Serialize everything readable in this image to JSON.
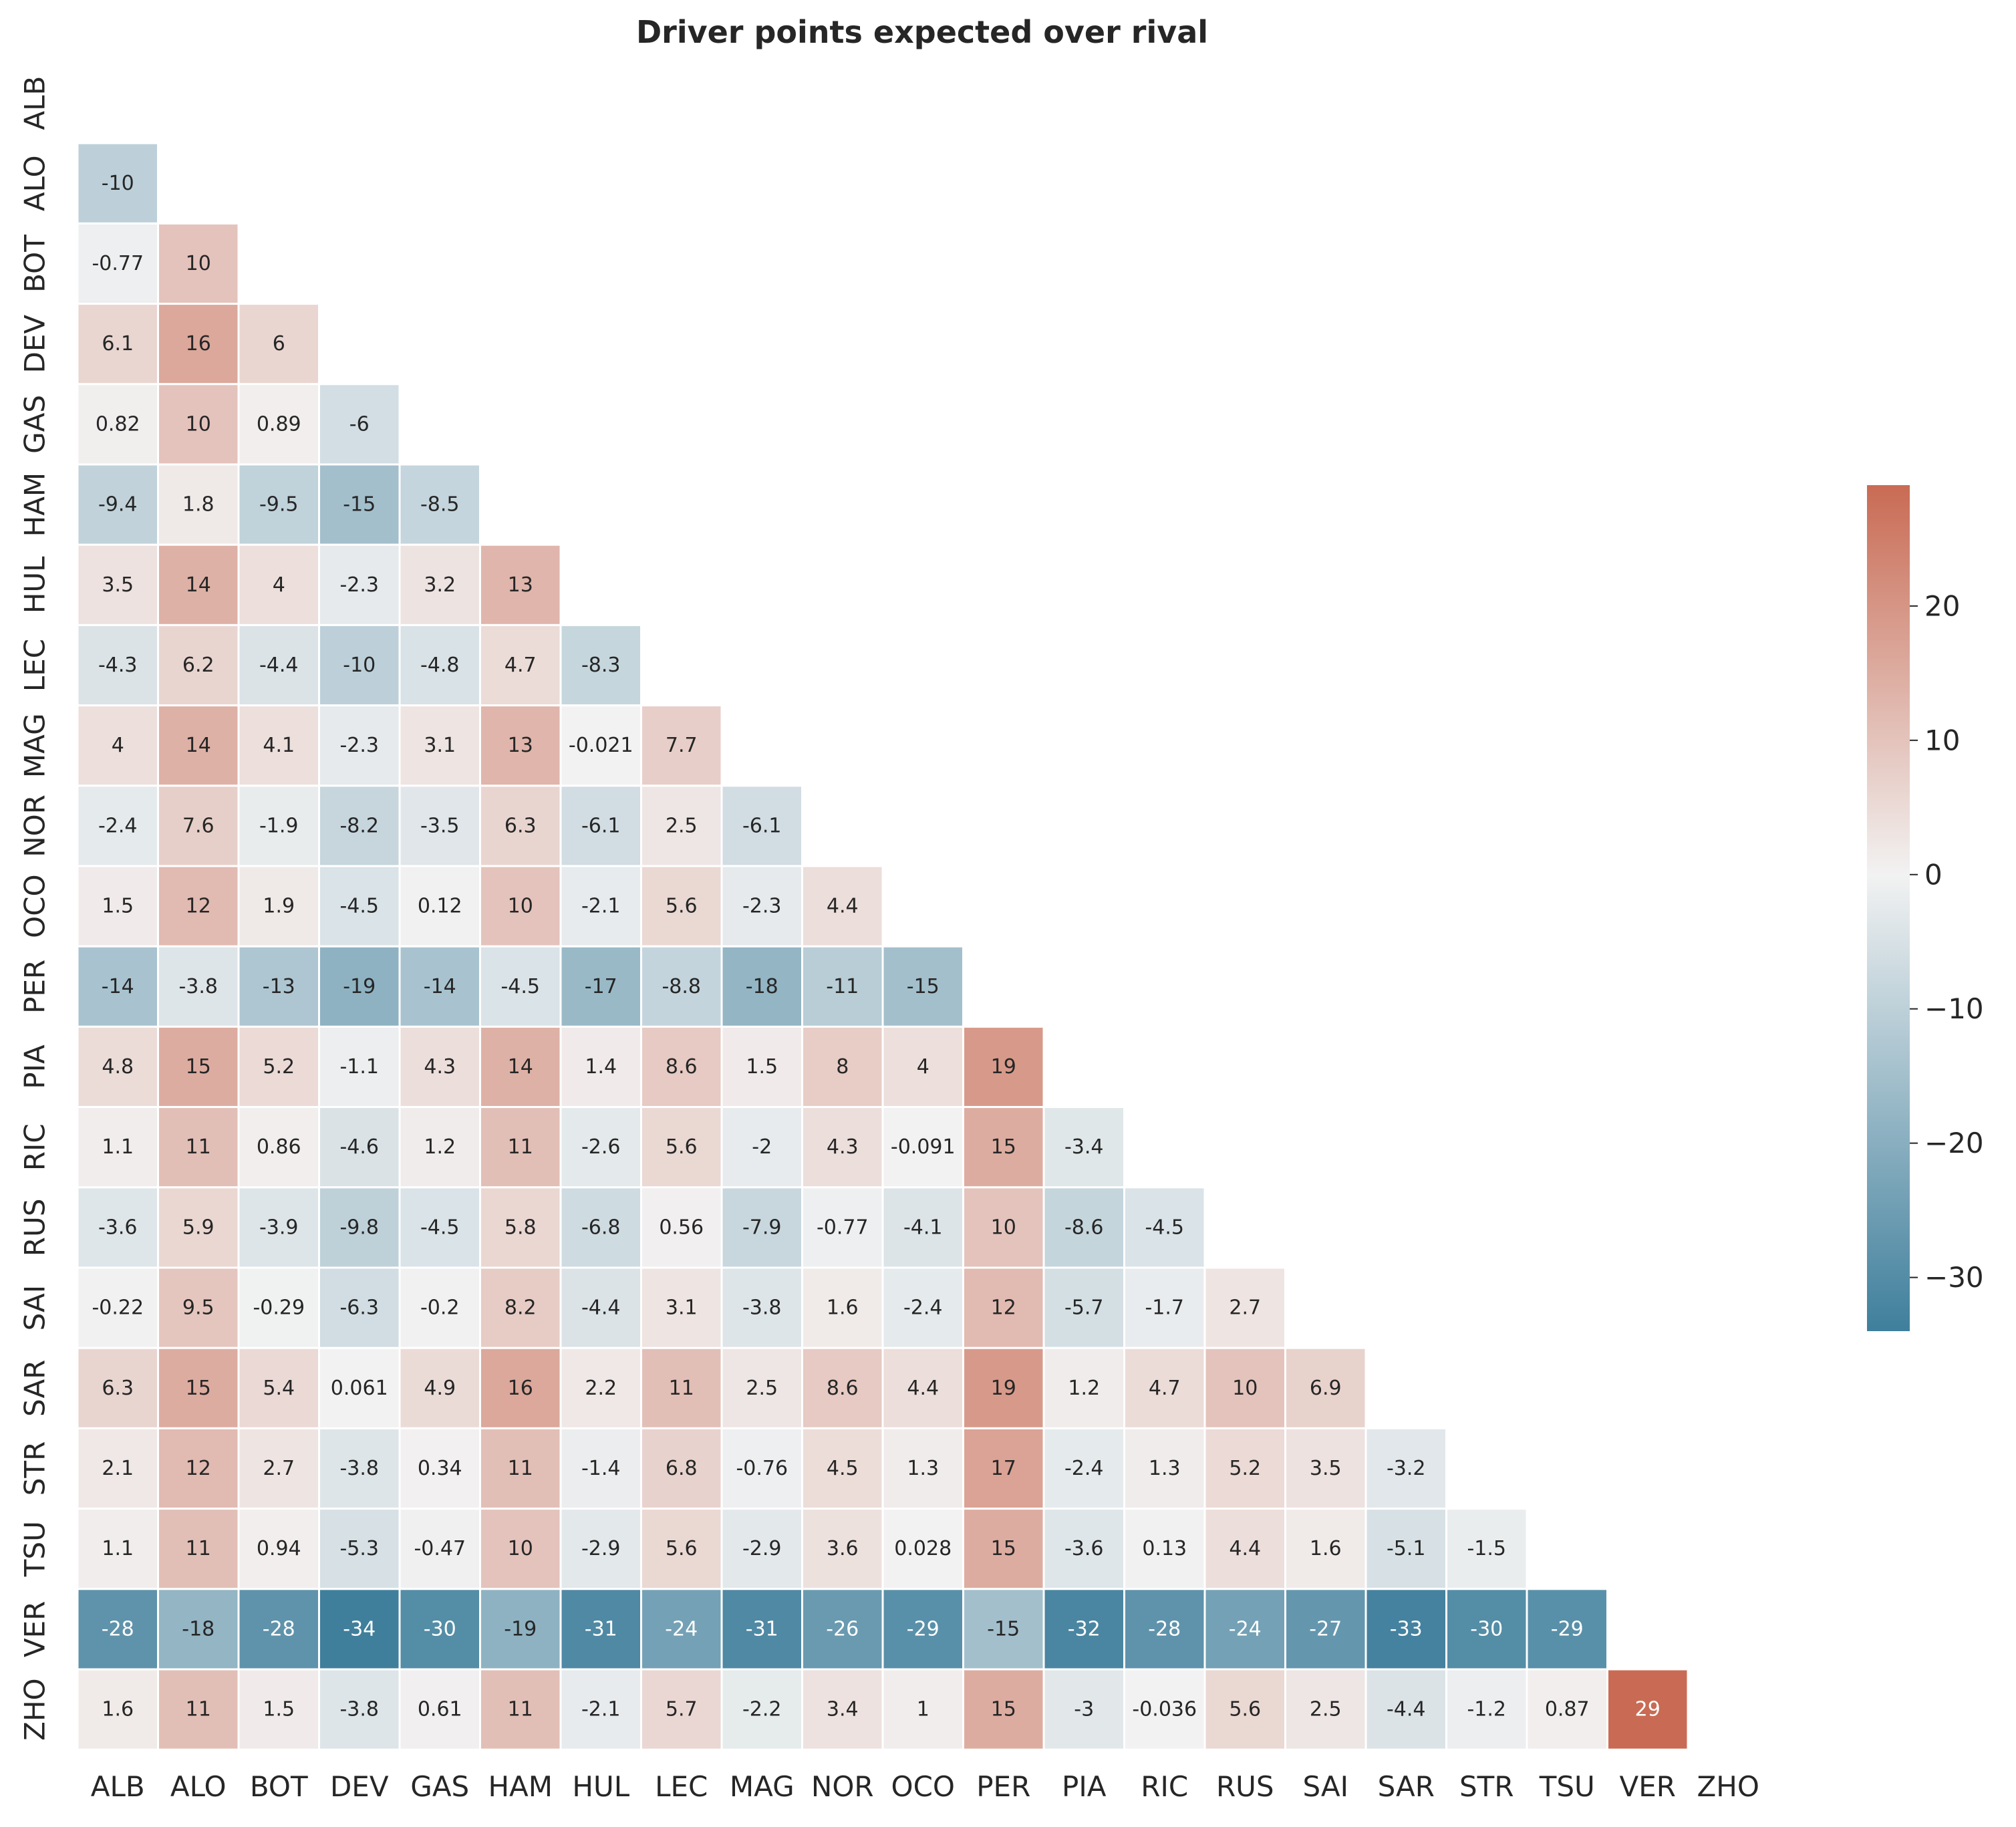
{
  "chart_data": {
    "type": "heatmap",
    "title": "Driver points expected over rival",
    "mask": "upper-triangle-including-diagonal",
    "labels": [
      "ALB",
      "ALO",
      "BOT",
      "DEV",
      "GAS",
      "HAM",
      "HUL",
      "LEC",
      "MAG",
      "NOR",
      "OCO",
      "PER",
      "PIA",
      "RIC",
      "RUS",
      "SAI",
      "SAR",
      "STR",
      "TSU",
      "VER",
      "ZHO"
    ],
    "rows": [
      [],
      [
        "-10"
      ],
      [
        "-0.77",
        "10"
      ],
      [
        "6.1",
        "16",
        "6"
      ],
      [
        "0.82",
        "10",
        "0.89",
        "-6"
      ],
      [
        "-9.4",
        "1.8",
        "-9.5",
        "-15",
        "-8.5"
      ],
      [
        "3.5",
        "14",
        "4",
        "-2.3",
        "3.2",
        "13"
      ],
      [
        "-4.3",
        "6.2",
        "-4.4",
        "-10",
        "-4.8",
        "4.7",
        "-8.3"
      ],
      [
        "4",
        "14",
        "4.1",
        "-2.3",
        "3.1",
        "13",
        "-0.021",
        "7.7"
      ],
      [
        "-2.4",
        "7.6",
        "-1.9",
        "-8.2",
        "-3.5",
        "6.3",
        "-6.1",
        "2.5",
        "-6.1"
      ],
      [
        "1.5",
        "12",
        "1.9",
        "-4.5",
        "0.12",
        "10",
        "-2.1",
        "5.6",
        "-2.3",
        "4.4"
      ],
      [
        "-14",
        "-3.8",
        "-13",
        "-19",
        "-14",
        "-4.5",
        "-17",
        "-8.8",
        "-18",
        "-11",
        "-15"
      ],
      [
        "4.8",
        "15",
        "5.2",
        "-1.1",
        "4.3",
        "14",
        "1.4",
        "8.6",
        "1.5",
        "8",
        "4",
        "19"
      ],
      [
        "1.1",
        "11",
        "0.86",
        "-4.6",
        "1.2",
        "11",
        "-2.6",
        "5.6",
        "-2",
        "4.3",
        "-0.091",
        "15",
        "-3.4"
      ],
      [
        "-3.6",
        "5.9",
        "-3.9",
        "-9.8",
        "-4.5",
        "5.8",
        "-6.8",
        "0.56",
        "-7.9",
        "-0.77",
        "-4.1",
        "10",
        "-8.6",
        "-4.5"
      ],
      [
        "-0.22",
        "9.5",
        "-0.29",
        "-6.3",
        "-0.2",
        "8.2",
        "-4.4",
        "3.1",
        "-3.8",
        "1.6",
        "-2.4",
        "12",
        "-5.7",
        "-1.7",
        "2.7"
      ],
      [
        "6.3",
        "15",
        "5.4",
        "0.061",
        "4.9",
        "16",
        "2.2",
        "11",
        "2.5",
        "8.6",
        "4.4",
        "19",
        "1.2",
        "4.7",
        "10",
        "6.9"
      ],
      [
        "2.1",
        "12",
        "2.7",
        "-3.8",
        "0.34",
        "11",
        "-1.4",
        "6.8",
        "-0.76",
        "4.5",
        "1.3",
        "17",
        "-2.4",
        "1.3",
        "5.2",
        "3.5",
        "-3.2"
      ],
      [
        "1.1",
        "11",
        "0.94",
        "-5.3",
        "-0.47",
        "10",
        "-2.9",
        "5.6",
        "-2.9",
        "3.6",
        "0.028",
        "15",
        "-3.6",
        "0.13",
        "4.4",
        "1.6",
        "-5.1",
        "-1.5"
      ],
      [
        "-28",
        "-18",
        "-28",
        "-34",
        "-30",
        "-19",
        "-31",
        "-24",
        "-31",
        "-26",
        "-29",
        "-15",
        "-32",
        "-28",
        "-24",
        "-27",
        "-33",
        "-30",
        "-29"
      ],
      [
        "1.6",
        "11",
        "1.5",
        "-3.8",
        "0.61",
        "11",
        "-2.1",
        "5.7",
        "-2.2",
        "3.4",
        "1",
        "15",
        "-3",
        "-0.036",
        "5.6",
        "2.5",
        "-4.4",
        "-1.2",
        "0.87",
        "29"
      ]
    ],
    "colorbar": {
      "min": -34,
      "max": 29,
      "center": 0,
      "ticks": [
        20,
        10,
        0,
        -10,
        -20,
        -30
      ],
      "tick_labels": [
        "20",
        "10",
        "0",
        "−10",
        "−20",
        "−30"
      ],
      "neg_color": "#3f7f9c",
      "mid_color": "#f2f2f2",
      "pos_color": "#c96b54"
    },
    "grid": false,
    "legend_placement": "right colorbar"
  }
}
